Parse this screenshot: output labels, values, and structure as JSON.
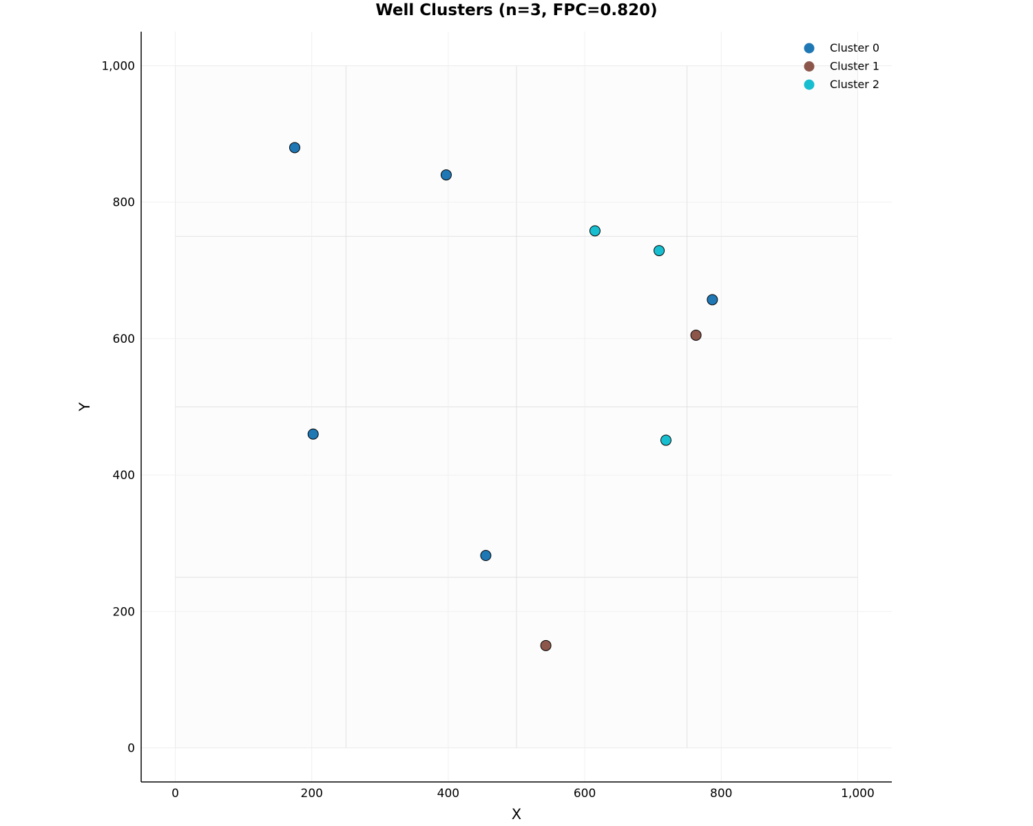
{
  "chart_data": {
    "type": "scatter",
    "title": "Well Clusters (n=3, FPC=0.820)",
    "xlabel": "X",
    "ylabel": "Y",
    "xlim": [
      -50,
      1050
    ],
    "ylim": [
      -50,
      1050
    ],
    "x_ticks": [
      0,
      200,
      400,
      600,
      800,
      1000
    ],
    "y_ticks": [
      0,
      200,
      400,
      600,
      800,
      1000
    ],
    "x_tick_labels": [
      "0",
      "200",
      "400",
      "600",
      "800",
      "1,000"
    ],
    "y_tick_labels": [
      "0",
      "200",
      "400",
      "600",
      "800",
      "1,000"
    ],
    "grid": true,
    "legend_position": "top-right",
    "lease_grid": {
      "extent": [
        0,
        1000
      ],
      "step": 250
    },
    "series": [
      {
        "name": "Cluster 0",
        "color": "#1f77b4",
        "points": [
          {
            "x": 175,
            "y": 880
          },
          {
            "x": 397,
            "y": 840
          },
          {
            "x": 787,
            "y": 657
          },
          {
            "x": 202,
            "y": 460
          },
          {
            "x": 455,
            "y": 282
          }
        ]
      },
      {
        "name": "Cluster 1",
        "color": "#8c564b",
        "points": [
          {
            "x": 763,
            "y": 605
          },
          {
            "x": 543,
            "y": 150
          }
        ]
      },
      {
        "name": "Cluster 2",
        "color": "#17becf",
        "points": [
          {
            "x": 615,
            "y": 758
          },
          {
            "x": 709,
            "y": 729
          },
          {
            "x": 719,
            "y": 451
          }
        ]
      }
    ]
  }
}
